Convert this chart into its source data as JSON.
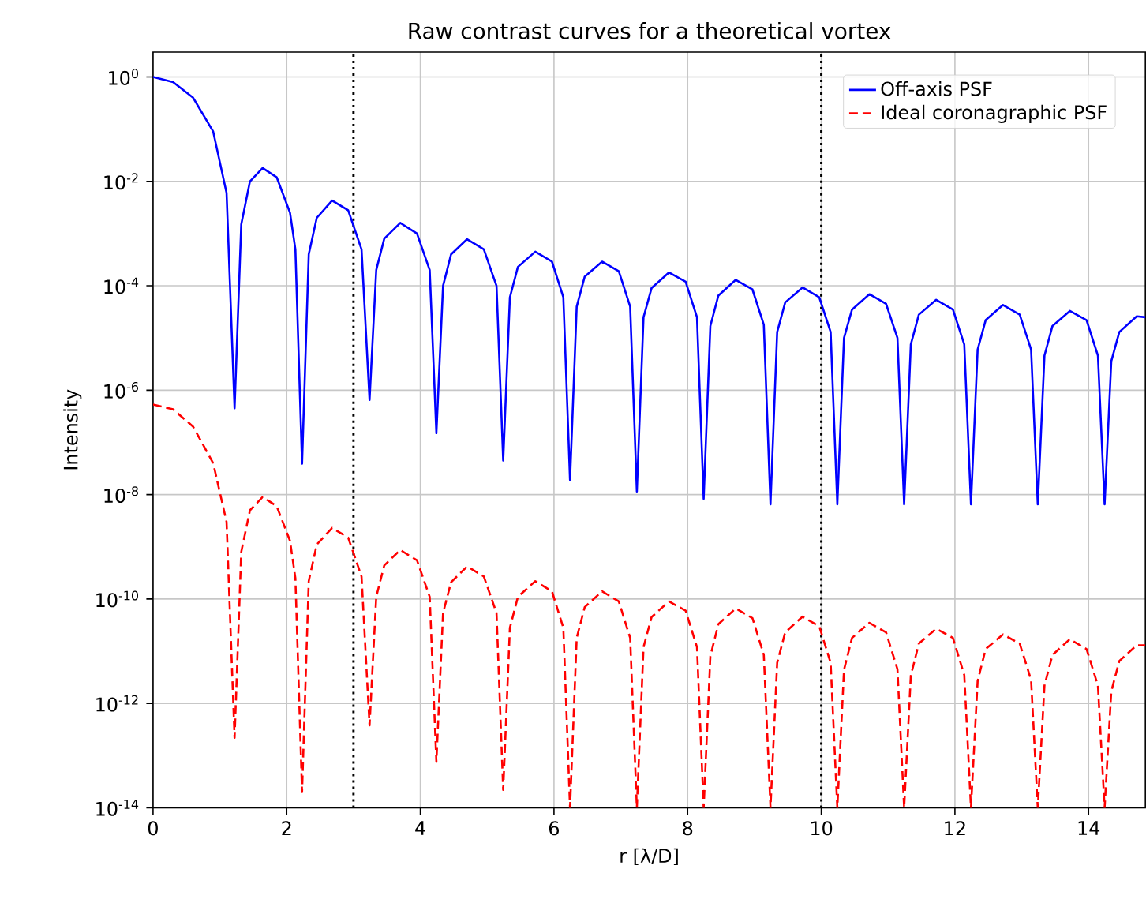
{
  "chart_data": {
    "type": "line",
    "title": "Raw contrast curves for a theoretical vortex",
    "xlabel": "r [λ/D]",
    "ylabel": "Intensity",
    "x": [
      0,
      0.3,
      0.6,
      0.9,
      1.1,
      1.22,
      1.32,
      1.45,
      1.64,
      1.85,
      2.05,
      2.13,
      2.23,
      2.33,
      2.45,
      2.68,
      2.92,
      3.12,
      3.24,
      3.34,
      3.46,
      3.7,
      3.95,
      4.14,
      4.24,
      4.34,
      4.46,
      4.7,
      4.95,
      5.14,
      5.24,
      5.34,
      5.46,
      5.72,
      5.97,
      6.14,
      6.24,
      6.34,
      6.46,
      6.72,
      6.97,
      7.14,
      7.24,
      7.34,
      7.46,
      7.72,
      7.97,
      8.14,
      8.24,
      8.34,
      8.46,
      8.72,
      8.97,
      9.14,
      9.24,
      9.34,
      9.46,
      9.72,
      9.97,
      10.14,
      10.24,
      10.34,
      10.46,
      10.72,
      10.97,
      11.14,
      11.24,
      11.34,
      11.46,
      11.72,
      11.97,
      12.14,
      12.24,
      12.34,
      12.46,
      12.72,
      12.97,
      13.14,
      13.24,
      13.34,
      13.46,
      13.72,
      13.97,
      14.14,
      14.24,
      14.34,
      14.46,
      14.72,
      14.85
    ],
    "series": [
      {
        "name": "Off-axis PSF",
        "color": "#0000ff",
        "line_style": "solid",
        "values": [
          1,
          0.8,
          0.4,
          0.09,
          0.006,
          4.5e-07,
          0.0015,
          0.01,
          0.018,
          0.012,
          0.0025,
          0.0005,
          3.9e-08,
          0.0004,
          0.002,
          0.0043,
          0.0028,
          0.0005,
          6.5e-07,
          0.0002,
          0.0008,
          0.0016,
          0.001,
          0.0002,
          1.5e-07,
          0.0001,
          0.0004,
          0.00078,
          0.0005,
          0.0001,
          4.5e-08,
          6e-05,
          0.00023,
          0.00045,
          0.00029,
          6e-05,
          1.9e-08,
          4e-05,
          0.00015,
          0.00029,
          0.00019,
          4e-05,
          1.15e-08,
          2.5e-05,
          9e-05,
          0.00018,
          0.00012,
          2.5e-05,
          8.3e-09,
          1.7e-05,
          6.5e-05,
          0.00013,
          8.5e-05,
          1.8e-05,
          6.5e-09,
          1.3e-05,
          4.8e-05,
          9.3e-05,
          6e-05,
          1.3e-05,
          6.5e-09,
          1e-05,
          3.5e-05,
          6.9e-05,
          4.5e-05,
          1e-05,
          6.5e-09,
          7.5e-06,
          2.8e-05,
          5.4e-05,
          3.5e-05,
          7.5e-06,
          6.5e-09,
          6e-06,
          2.2e-05,
          4.3e-05,
          2.8e-05,
          6e-06,
          6.5e-09,
          4.6e-06,
          1.7e-05,
          3.3e-05,
          2.2e-05,
          4.6e-06,
          6.5e-09,
          3.6e-06,
          1.3e-05,
          2.6e-05,
          2.5e-05
        ]
      },
      {
        "name": "Ideal coronagraphic PSF",
        "color": "#ff0000",
        "line_style": "dashed",
        "values": [
          5.3e-07,
          4.3e-07,
          2e-07,
          4e-08,
          3e-09,
          2.2e-13,
          8e-10,
          5e-09,
          9e-09,
          6e-09,
          1.3e-09,
          2.5e-10,
          2e-14,
          2.2e-10,
          1.1e-09,
          2.3e-09,
          1.5e-09,
          2.7e-10,
          3.8e-13,
          1.1e-10,
          4.4e-10,
          8.7e-10,
          5.5e-10,
          1.1e-10,
          7.6e-14,
          5.4e-11,
          2.1e-10,
          4.2e-10,
          2.7e-10,
          5.4e-11,
          2.2e-14,
          2.8e-11,
          1.1e-10,
          2.2e-10,
          1.4e-10,
          2.8e-11,
          1e-14,
          1.8e-11,
          7e-11,
          1.4e-10,
          9e-11,
          1.8e-11,
          1e-14,
          1.2e-11,
          4.5e-11,
          9e-11,
          6e-11,
          1.2e-11,
          1e-14,
          8e-12,
          3.3e-11,
          6.6e-11,
          4.3e-11,
          8.5e-12,
          1e-14,
          6e-12,
          2.3e-11,
          4.6e-11,
          3e-11,
          6e-12,
          1e-14,
          4.4e-12,
          1.8e-11,
          3.5e-11,
          2.3e-11,
          4.5e-12,
          1e-14,
          3.4e-12,
          1.4e-11,
          2.7e-11,
          1.8e-11,
          3.5e-12,
          1e-14,
          2.7e-12,
          1.1e-11,
          2.1e-11,
          1.4e-11,
          2.8e-12,
          1e-14,
          2.2e-12,
          8.5e-12,
          1.7e-11,
          1.1e-11,
          2.2e-12,
          1e-14,
          1.7e-12,
          6.5e-12,
          1.3e-11,
          1.3e-11
        ]
      }
    ],
    "log": "y",
    "xlim": [
      0,
      14.85
    ],
    "ylim": [
      1e-14,
      3
    ],
    "xticks": [
      0,
      2,
      4,
      6,
      8,
      10,
      12,
      14
    ],
    "yticks": [
      {
        "value": 1,
        "label": "10$^{0}$"
      },
      {
        "value": 0.01,
        "label": "10$^{-2}$"
      },
      {
        "value": 0.0001,
        "label": "10$^{-4}$"
      },
      {
        "value": 1e-06,
        "label": "10$^{-6}$"
      },
      {
        "value": 1e-08,
        "label": "10$^{-8}$"
      },
      {
        "value": 1e-10,
        "label": "10$^{-10}$"
      },
      {
        "value": 1e-12,
        "label": "10$^{-12}$"
      },
      {
        "value": 1e-14,
        "label": "10$^{-14}$"
      }
    ],
    "ref_lines": [
      {
        "axis": "x",
        "value": 3,
        "color": "#000000",
        "line_style": "dotted"
      },
      {
        "axis": "x",
        "value": 10,
        "color": "#000000",
        "line_style": "dotted"
      }
    ],
    "grid": true,
    "legend": "top right"
  }
}
